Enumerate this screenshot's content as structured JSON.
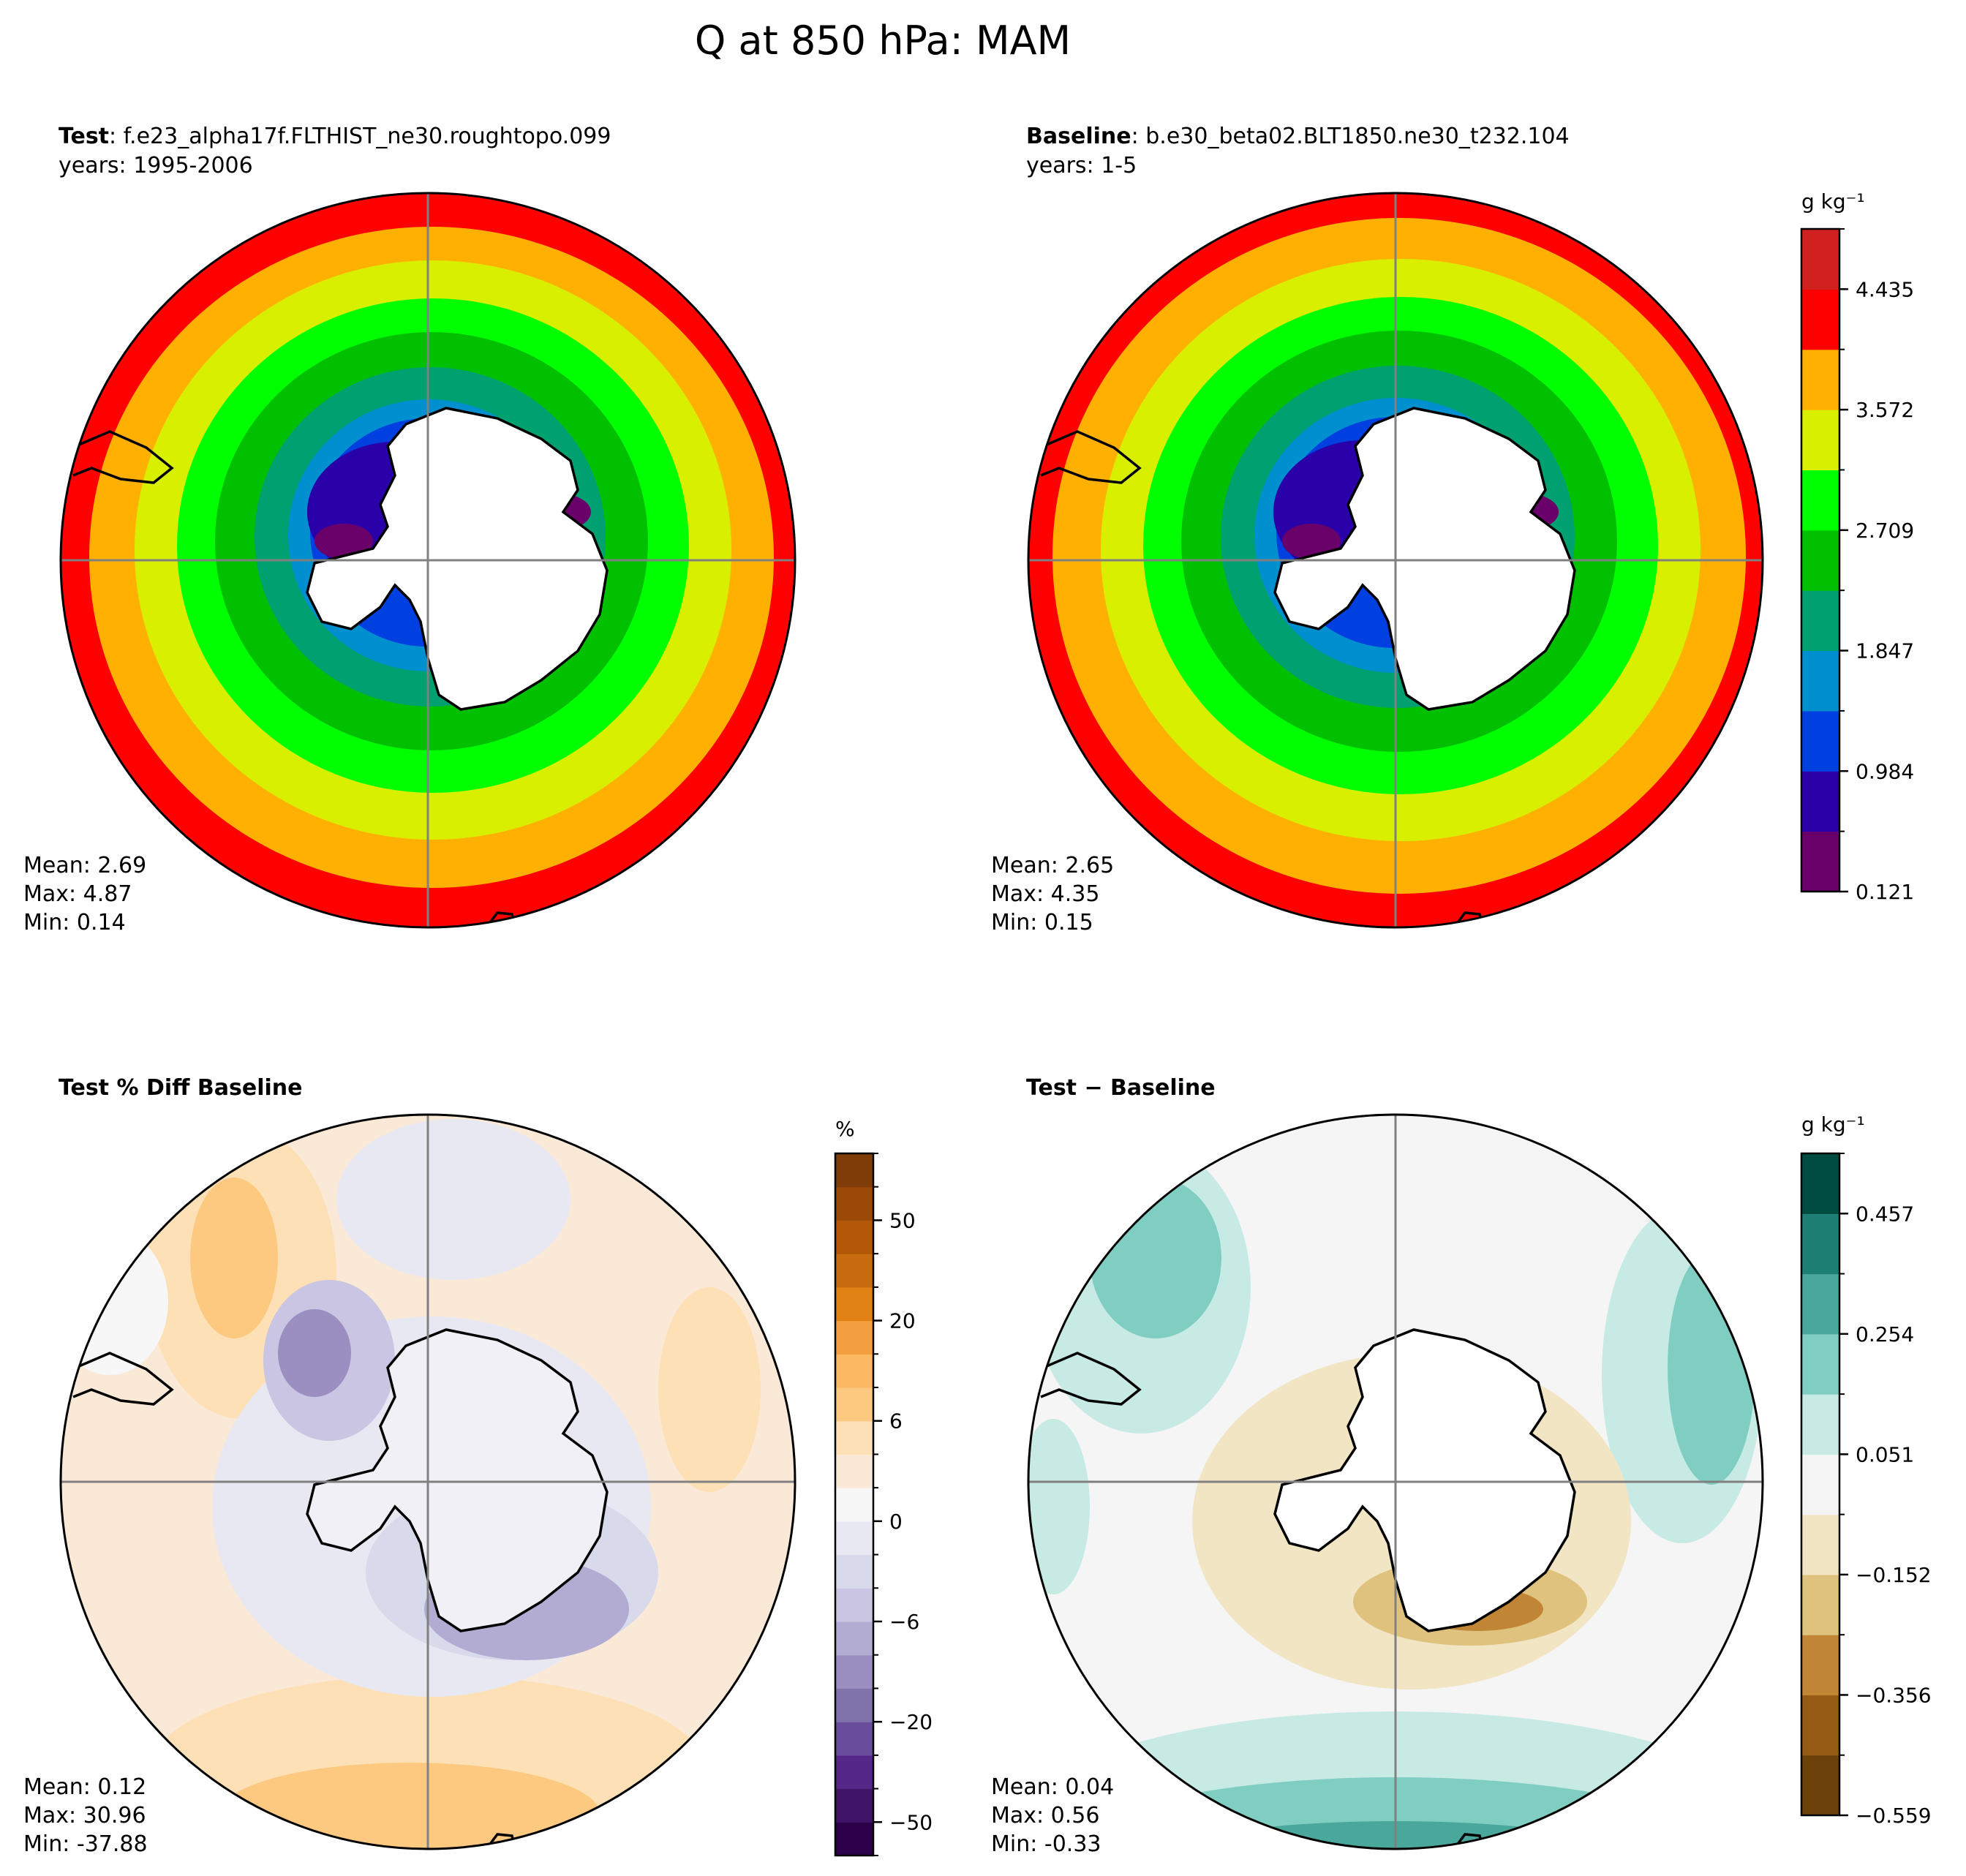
{
  "figure": {
    "title": "Q at 850 hPa: MAM"
  },
  "panels": [
    {
      "id": "test",
      "label_bold": "Test",
      "label_rest": ": f.e23_alpha17f.FLTHIST_ne30.roughtopo.099",
      "subtitle": "years: 1995-2006",
      "stats": [
        "Mean:  2.69",
        "Max:  4.87",
        "Min:  0.14"
      ]
    },
    {
      "id": "baseline",
      "label_bold": "Baseline",
      "label_rest": ": b.e30_beta02.BLT1850.ne30_t232.104",
      "subtitle": "years: 1-5",
      "stats": [
        "Mean:  2.65",
        "Max:  4.35",
        "Min:  0.15"
      ]
    },
    {
      "id": "pctdiff",
      "label_bold": "Test % Diff Baseline",
      "label_rest": "",
      "subtitle": "",
      "stats": [
        "Mean:  0.12",
        "Max: 30.96",
        "Min: -37.88"
      ]
    },
    {
      "id": "diff",
      "label_bold": "Test − Baseline",
      "label_rest": "",
      "subtitle": "",
      "stats": [
        "Mean:  0.04",
        "Max:  0.56",
        "Min: -0.33"
      ]
    }
  ],
  "colorbars": [
    {
      "id": "abs",
      "unit": "g kg⁻¹",
      "colors": [
        "#6a006a",
        "#2a00a8",
        "#0040e0",
        "#0090d0",
        "#00a070",
        "#00c000",
        "#00ff00",
        "#d8f000",
        "#ffb000",
        "#ff0000",
        "#d02020"
      ],
      "ticks": [
        "0.121",
        "0.984",
        "1.847",
        "2.709",
        "3.572",
        "4.435"
      ]
    },
    {
      "id": "pct",
      "unit": "%",
      "colors": [
        "#2d004b",
        "#3f1466",
        "#542788",
        "#6a4c9c",
        "#8073ac",
        "#9a8fc0",
        "#b2abd2",
        "#c9c5e2",
        "#d8daeb",
        "#e8e8f2",
        "#f7f7f7",
        "#fbe9d8",
        "#fee0b6",
        "#fdc981",
        "#fdb863",
        "#f4a040",
        "#e08214",
        "#c86a0e",
        "#b35806",
        "#9a4a06",
        "#7f3b08"
      ],
      "ticks": [
        "−50",
        "−20",
        "−6",
        "0",
        "6",
        "20",
        "50"
      ]
    },
    {
      "id": "diff",
      "unit": "g kg⁻¹",
      "colors": [
        "#6b4109",
        "#955a14",
        "#c08535",
        "#dfc27d",
        "#f2e5c4",
        "#f5f5f5",
        "#c7eae5",
        "#80cdc1",
        "#4aa79b",
        "#1e7f74",
        "#004c40"
      ],
      "ticks": [
        "−0.559",
        "−0.356",
        "−0.152",
        "0.051",
        "0.254",
        "0.457"
      ]
    }
  ]
}
